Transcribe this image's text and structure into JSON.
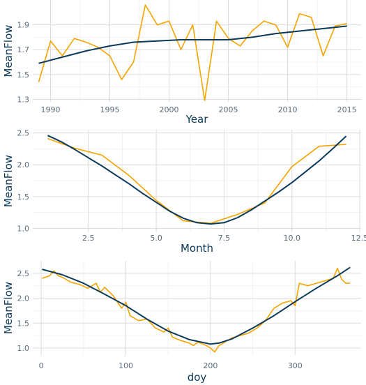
{
  "colors": {
    "observed": "#f5a300",
    "fitted": "#0b3a5a",
    "grid": "#dcdcdc"
  },
  "chart_data": [
    {
      "type": "line",
      "xlabel": "Year",
      "ylabel": "MeanFlow",
      "xlim": [
        1988.5,
        2016.2
      ],
      "ylim": [
        1.28,
        2.1
      ],
      "xticks": [
        1990,
        1995,
        2000,
        2005,
        2010,
        2015
      ],
      "xtick_labels": [
        "1990",
        "1995",
        "2000",
        "2005",
        "2010",
        "2015"
      ],
      "yticks": [
        1.3,
        1.5,
        1.7,
        1.9
      ],
      "ytick_labels": [
        "1.3",
        "1.5",
        "1.7",
        "1.9"
      ],
      "series": [
        {
          "role": "observed",
          "x": [
            1989,
            1990,
            1991,
            1992,
            1993,
            1994,
            1995,
            1996,
            1997,
            1998,
            1999,
            2000,
            2001,
            2002,
            2003,
            2004,
            2005,
            2006,
            2007,
            2008,
            2009,
            2010,
            2011,
            2012,
            2013,
            2014,
            2015
          ],
          "y": [
            1.44,
            1.77,
            1.65,
            1.79,
            1.76,
            1.72,
            1.65,
            1.46,
            1.6,
            2.06,
            1.9,
            1.93,
            1.7,
            1.9,
            1.29,
            1.93,
            1.79,
            1.73,
            1.85,
            1.93,
            1.9,
            1.72,
            1.99,
            1.96,
            1.65,
            1.89,
            1.91
          ]
        },
        {
          "role": "fitted",
          "x": [
            1989,
            1991,
            1993,
            1995,
            1997,
            1999,
            2001,
            2003,
            2005,
            2007,
            2009,
            2011,
            2013,
            2015
          ],
          "y": [
            1.59,
            1.64,
            1.69,
            1.73,
            1.76,
            1.77,
            1.78,
            1.78,
            1.78,
            1.8,
            1.83,
            1.85,
            1.87,
            1.89
          ]
        }
      ]
    },
    {
      "type": "line",
      "xlabel": "Month",
      "ylabel": "MeanFlow",
      "xlim": [
        0.45,
        12.55
      ],
      "ylim": [
        0.94,
        2.55
      ],
      "xticks": [
        2.5,
        5.0,
        7.5,
        10.0,
        12.5
      ],
      "xtick_labels": [
        "2.5",
        "5.0",
        "7.5",
        "10.0",
        "12.5"
      ],
      "yticks": [
        1.0,
        1.5,
        2.0,
        2.5
      ],
      "ytick_labels": [
        "1.0",
        "1.5",
        "2.0",
        "2.5"
      ],
      "series": [
        {
          "role": "observed",
          "x": [
            1,
            2,
            3,
            4,
            5,
            6,
            7,
            8,
            9,
            10,
            11,
            12
          ],
          "y": [
            2.41,
            2.26,
            2.15,
            1.83,
            1.44,
            1.12,
            1.08,
            1.22,
            1.4,
            1.97,
            2.29,
            2.32
          ]
        },
        {
          "role": "fitted",
          "x": [
            1,
            1.5,
            2,
            2.5,
            3,
            3.5,
            4,
            4.5,
            5,
            5.5,
            6,
            6.5,
            7,
            7.5,
            8,
            8.5,
            9,
            9.5,
            10,
            10.5,
            11,
            11.5,
            12
          ],
          "y": [
            2.46,
            2.36,
            2.24,
            2.11,
            1.98,
            1.84,
            1.7,
            1.55,
            1.41,
            1.27,
            1.16,
            1.09,
            1.07,
            1.09,
            1.17,
            1.29,
            1.43,
            1.57,
            1.72,
            1.89,
            2.06,
            2.25,
            2.45
          ]
        }
      ]
    },
    {
      "type": "line",
      "xlabel": "doy",
      "ylabel": "MeanFlow",
      "xlim": [
        -10,
        378
      ],
      "ylim": [
        0.86,
        2.75
      ],
      "xticks": [
        0,
        100,
        200,
        300
      ],
      "xtick_labels": [
        "0",
        "100",
        "200",
        "300"
      ],
      "yticks": [
        1.0,
        1.5,
        2.0,
        2.5
      ],
      "ytick_labels": [
        "1.0",
        "1.5",
        "2.0",
        "2.5"
      ],
      "series": [
        {
          "role": "observed",
          "x": [
            1,
            10,
            15,
            20,
            25,
            35,
            45,
            55,
            65,
            70,
            75,
            85,
            95,
            100,
            105,
            115,
            125,
            135,
            145,
            150,
            155,
            165,
            175,
            180,
            185,
            195,
            200,
            205,
            210,
            215,
            225,
            235,
            245,
            255,
            265,
            275,
            285,
            295,
            300,
            305,
            315,
            325,
            335,
            345,
            350,
            355,
            360,
            365
          ],
          "y": [
            2.4,
            2.45,
            2.55,
            2.45,
            2.42,
            2.32,
            2.28,
            2.2,
            2.3,
            2.12,
            2.22,
            2.05,
            1.8,
            1.92,
            1.65,
            1.55,
            1.58,
            1.4,
            1.32,
            1.4,
            1.22,
            1.15,
            1.1,
            1.05,
            1.12,
            1.05,
            1.0,
            0.92,
            1.05,
            1.1,
            1.2,
            1.25,
            1.3,
            1.4,
            1.55,
            1.8,
            1.9,
            1.95,
            1.85,
            2.3,
            2.25,
            2.3,
            2.35,
            2.4,
            2.6,
            2.38,
            2.3,
            2.3
          ]
        },
        {
          "role": "fitted",
          "x": [
            1,
            25,
            50,
            75,
            100,
            125,
            150,
            175,
            200,
            210,
            225,
            250,
            275,
            300,
            325,
            350,
            365
          ],
          "y": [
            2.58,
            2.47,
            2.3,
            2.08,
            1.85,
            1.58,
            1.34,
            1.17,
            1.08,
            1.1,
            1.18,
            1.4,
            1.65,
            1.93,
            2.2,
            2.45,
            2.62
          ]
        }
      ]
    }
  ]
}
